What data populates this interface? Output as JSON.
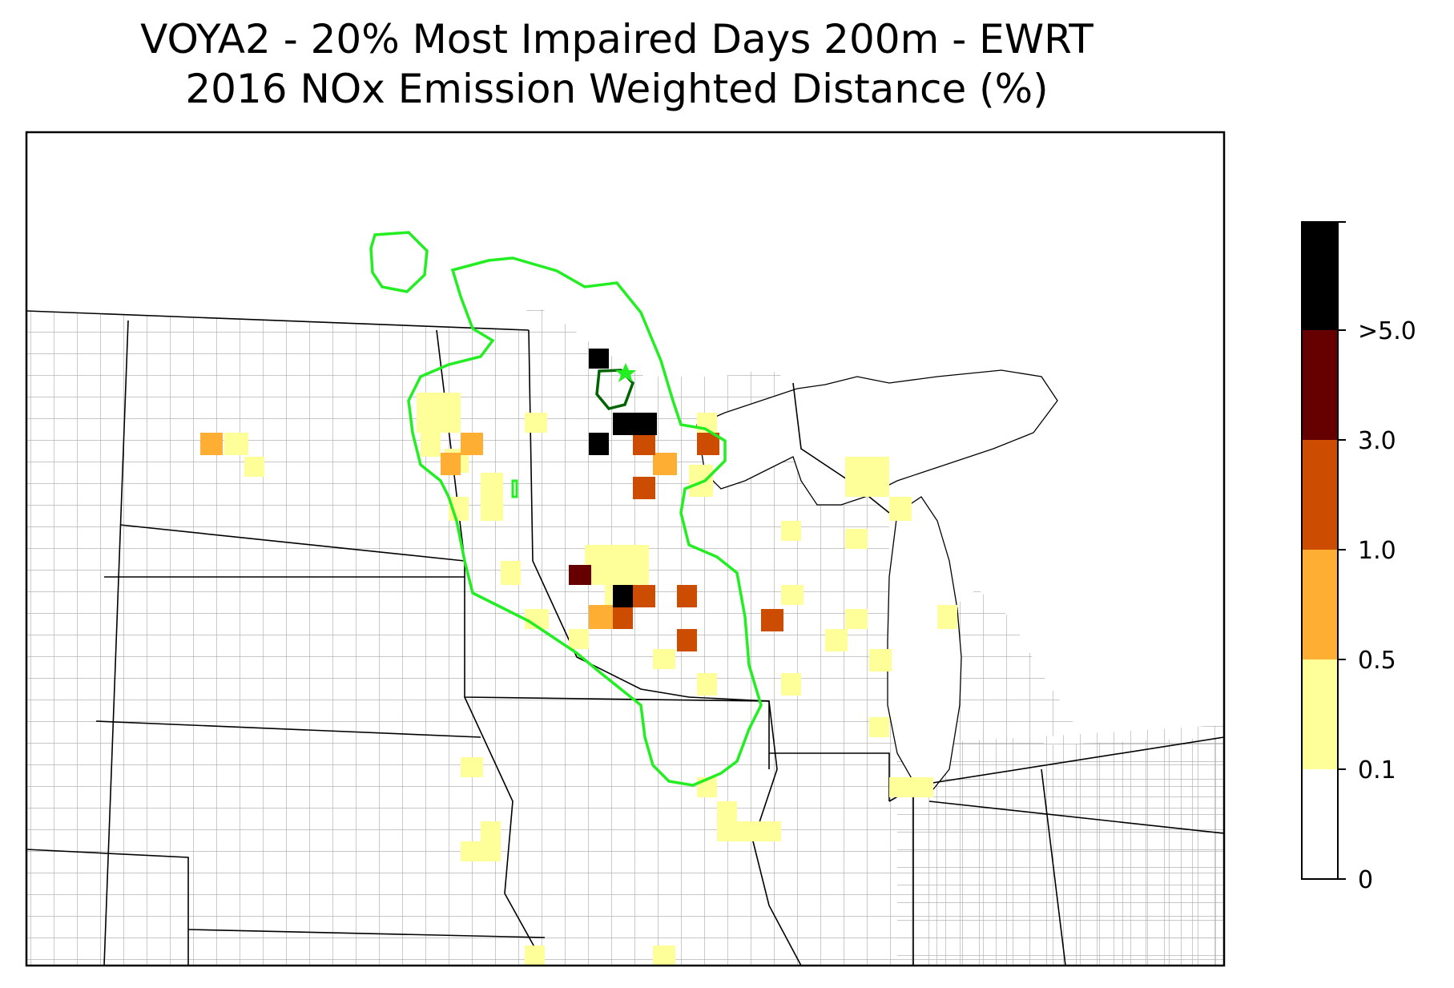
{
  "title": {
    "line1": "VOYA2 - 20% Most Impaired Days 200m - EWRT",
    "line2": "2016 NOx Emission Weighted Distance (%)"
  },
  "colorbar": {
    "tick_labels": [
      "0",
      "0.1",
      "0.5",
      "1.0",
      "3.0",
      ">5.0"
    ],
    "colors": [
      "#ffffff",
      "#ffff99",
      "#fdae33",
      "#cc4c02",
      "#660000",
      "#000000"
    ]
  },
  "colors": {
    "contour_outer": "#22ee22",
    "contour_inner": "#006400",
    "state_border": "#000000",
    "county_border": "#9a9a9a"
  }
}
